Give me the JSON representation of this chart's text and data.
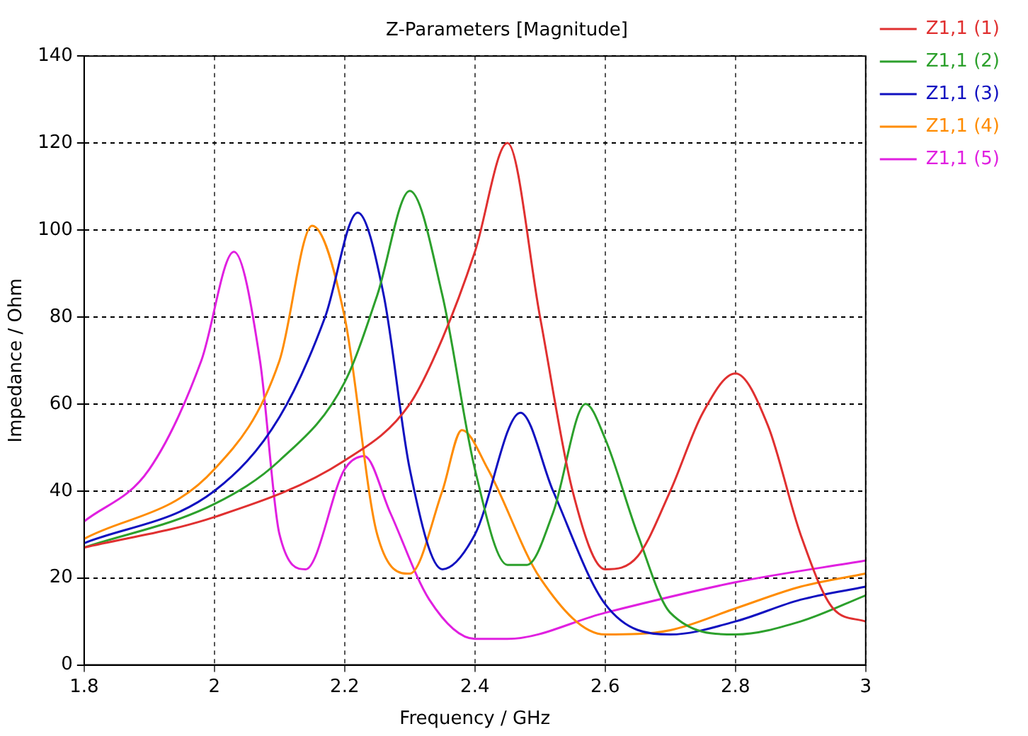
{
  "chart_data": {
    "type": "line",
    "title": "Z-Parameters [Magnitude]",
    "xlabel": "Frequency / GHz",
    "ylabel": "Impedance / Ohm",
    "xlim": [
      1.8,
      3
    ],
    "xticks": [
      1.8,
      2,
      2.2,
      2.4,
      2.6,
      2.8,
      3
    ],
    "ylim": [
      0,
      140
    ],
    "yticks": [
      0,
      20,
      40,
      60,
      80,
      100,
      120,
      140
    ],
    "grid": true,
    "legend": "right",
    "marker": "none",
    "line_style": "solid",
    "series": [
      {
        "name": "Z1,1 (1)",
        "color": "#e03030",
        "x": [
          1.8,
          2.0,
          2.2,
          2.3,
          2.35,
          2.4,
          2.45,
          2.5,
          2.55,
          2.6,
          2.65,
          2.7,
          2.75,
          2.8,
          2.85,
          2.9,
          2.95,
          3.0
        ],
        "values": [
          27,
          34,
          47,
          60,
          75,
          95,
          120,
          80,
          40,
          22,
          25,
          40,
          58,
          67,
          55,
          30,
          13,
          10
        ]
      },
      {
        "name": "Z1,1 (2)",
        "color": "#2ca02c",
        "x": [
          1.8,
          2.0,
          2.1,
          2.2,
          2.25,
          2.3,
          2.35,
          2.4,
          2.45,
          2.48,
          2.52,
          2.57,
          2.6,
          2.65,
          2.7,
          2.8,
          2.9,
          3.0
        ],
        "values": [
          27,
          37,
          47,
          65,
          85,
          109,
          85,
          45,
          23,
          23,
          35,
          60,
          52,
          30,
          12,
          7,
          10,
          16
        ]
      },
      {
        "name": "Z1,1 (3)",
        "color": "#1010c0",
        "x": [
          1.8,
          2.0,
          2.1,
          2.17,
          2.22,
          2.26,
          2.3,
          2.35,
          2.4,
          2.47,
          2.52,
          2.6,
          2.7,
          2.8,
          2.9,
          3.0
        ],
        "values": [
          28,
          40,
          57,
          80,
          104,
          85,
          45,
          22,
          30,
          58,
          40,
          14,
          7,
          10,
          15,
          18
        ]
      },
      {
        "name": "Z1,1 (4)",
        "color": "#ff8c00",
        "x": [
          1.8,
          2.0,
          2.1,
          2.15,
          2.2,
          2.25,
          2.3,
          2.35,
          2.38,
          2.42,
          2.5,
          2.6,
          2.7,
          2.8,
          2.9,
          3.0
        ],
        "values": [
          29,
          45,
          70,
          101,
          80,
          30,
          21,
          40,
          54,
          45,
          20,
          7,
          8,
          13,
          18,
          21
        ]
      },
      {
        "name": "Z1,1 (5)",
        "color": "#e020e0",
        "x": [
          1.8,
          1.9,
          1.98,
          2.03,
          2.07,
          2.1,
          2.14,
          2.2,
          2.23,
          2.27,
          2.33,
          2.4,
          2.45,
          2.6,
          2.8,
          3.0
        ],
        "values": [
          33,
          45,
          70,
          95,
          70,
          30,
          22,
          45,
          48,
          35,
          15,
          6,
          6,
          12,
          19,
          24
        ]
      }
    ]
  }
}
